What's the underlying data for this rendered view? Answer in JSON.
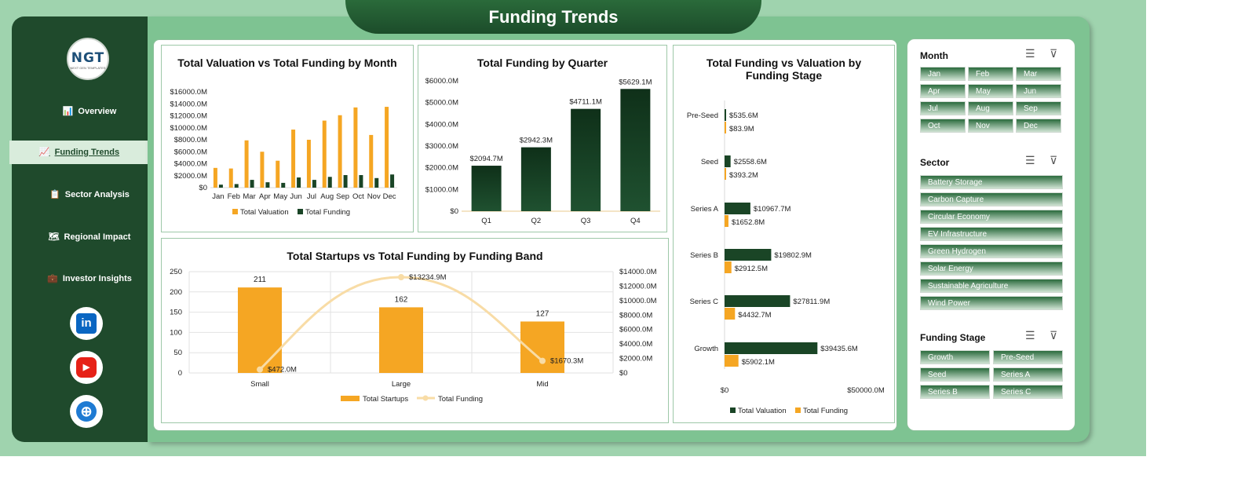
{
  "header": {
    "title": "Funding Trends"
  },
  "logo": {
    "text": "NGT",
    "subtext": "NEXT GEN TEMPLATES"
  },
  "nav": [
    {
      "label": "Overview",
      "icon": "📊"
    },
    {
      "label": "Funding Trends",
      "icon": "📈",
      "active": true
    },
    {
      "label": "Sector Analysis",
      "icon": "📋"
    },
    {
      "label": "Regional Impact",
      "icon": "🗺"
    },
    {
      "label": "Investor Insights",
      "icon": "💼"
    }
  ],
  "social": {
    "linkedin": "in",
    "youtube": "▶",
    "web": "⊕"
  },
  "slicers": {
    "month": {
      "title": "Month",
      "items": [
        "Jan",
        "Feb",
        "Mar",
        "Apr",
        "May",
        "Jun",
        "Jul",
        "Aug",
        "Sep",
        "Oct",
        "Nov",
        "Dec"
      ]
    },
    "sector": {
      "title": "Sector",
      "items": [
        "Battery Storage",
        "Carbon Capture",
        "Circular Economy",
        "EV Infrastructure",
        "Green Hydrogen",
        "Solar Energy",
        "Sustainable Agriculture",
        "Wind Power"
      ]
    },
    "stage": {
      "title": "Funding Stage",
      "items": [
        "Growth",
        "Pre-Seed",
        "Seed",
        "Series A",
        "Series B",
        "Series C"
      ]
    }
  },
  "colors": {
    "dark_green": "#1a4526",
    "orange": "#f5a623",
    "light_orange": "#f8dca6"
  },
  "chart_data": [
    {
      "id": "monthly",
      "type": "bar",
      "title": "Total Valuation vs Total Funding by Month",
      "categories": [
        "Jan",
        "Feb",
        "Mar",
        "Apr",
        "May",
        "Jun",
        "Jul",
        "Aug",
        "Sep",
        "Oct",
        "Nov",
        "Dec"
      ],
      "series": [
        {
          "name": "Total Valuation",
          "values": [
            3300,
            3200,
            7900,
            6000,
            4500,
            9700,
            8000,
            11200,
            12100,
            13400,
            8800,
            13500
          ]
        },
        {
          "name": "Total Funding",
          "values": [
            500,
            600,
            1300,
            900,
            800,
            1700,
            1300,
            1800,
            2100,
            2100,
            1600,
            2200
          ]
        }
      ],
      "ylim": [
        0,
        16000
      ],
      "yticks": [
        "$0",
        "$2000.0M",
        "$4000.0M",
        "$6000.0M",
        "$8000.0M",
        "$10000.0M",
        "$12000.0M",
        "$14000.0M",
        "$16000.0M"
      ]
    },
    {
      "id": "quarter",
      "type": "bar",
      "title": "Total Funding by Quarter",
      "categories": [
        "Q1",
        "Q2",
        "Q3",
        "Q4"
      ],
      "values": [
        2094.7,
        2942.3,
        4711.1,
        5629.1
      ],
      "labels": [
        "$2094.7M",
        "$2942.3M",
        "$4711.1M",
        "$5629.1M"
      ],
      "ylim": [
        0,
        6000
      ],
      "yticks": [
        "$0",
        "$1000.0M",
        "$2000.0M",
        "$3000.0M",
        "$4000.0M",
        "$5000.0M",
        "$6000.0M"
      ]
    },
    {
      "id": "stage",
      "type": "bar",
      "title": "Total Funding vs Valuation by Funding Stage",
      "categories": [
        "Pre-Seed",
        "Seed",
        "Series A",
        "Series B",
        "Series C",
        "Growth"
      ],
      "series": [
        {
          "name": "Total Valuation",
          "values": [
            535.6,
            2558.6,
            10967.7,
            19802.9,
            27811.9,
            39435.6
          ],
          "labels": [
            "$535.6M",
            "$2558.6M",
            "$10967.7M",
            "$19802.9M",
            "$27811.9M",
            "$39435.6M"
          ]
        },
        {
          "name": "Total Funding",
          "values": [
            83.9,
            393.2,
            1652.8,
            2912.5,
            4432.7,
            5902.1
          ],
          "labels": [
            "$83.9M",
            "$393.2M",
            "$1652.8M",
            "$2912.5M",
            "$4432.7M",
            "$5902.1M"
          ]
        }
      ],
      "xlim": [
        0,
        50000
      ],
      "xticks": [
        "$0",
        "$50000.0M"
      ]
    },
    {
      "id": "band",
      "type": "bar",
      "title": "Total Startups vs Total Funding by Funding Band",
      "categories": [
        "Small",
        "Large",
        "Mid"
      ],
      "series": [
        {
          "name": "Total Startups",
          "values": [
            211,
            162,
            127
          ],
          "labels": [
            "211",
            "162",
            "127"
          ]
        },
        {
          "name": "Total Funding",
          "values": [
            472.0,
            13234.9,
            1670.3
          ],
          "labels": [
            "$472.0M",
            "$13234.9M",
            "$1670.3M"
          ]
        }
      ],
      "ylim_left": [
        0,
        250
      ],
      "ylim_right": [
        0,
        14000
      ],
      "yticks_left": [
        "0",
        "50",
        "100",
        "150",
        "200",
        "250"
      ],
      "yticks_right": [
        "$0",
        "$2000.0M",
        "$4000.0M",
        "$6000.0M",
        "$8000.0M",
        "$10000.0M",
        "$12000.0M",
        "$14000.0M"
      ]
    }
  ]
}
